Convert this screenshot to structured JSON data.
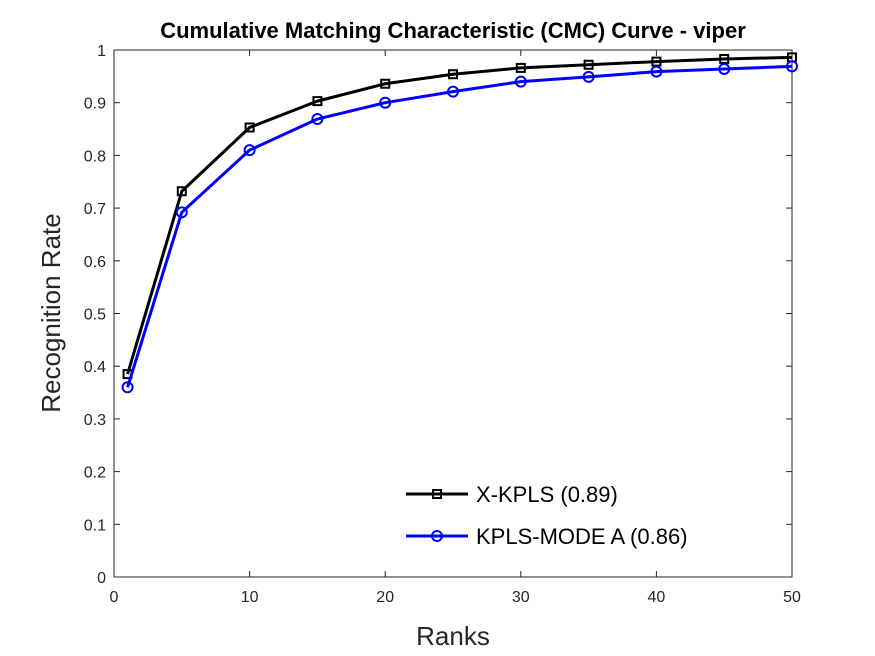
{
  "chart_data": {
    "type": "line",
    "title": "Cumulative Matching Characteristic (CMC) Curve - viper",
    "xlabel": "Ranks",
    "ylabel": "Recognition Rate",
    "xlim": [
      0,
      50
    ],
    "ylim": [
      0,
      1
    ],
    "xticks": [
      "0",
      "10",
      "20",
      "30",
      "40",
      "50"
    ],
    "yticks": [
      "0",
      "0.1",
      "0.2",
      "0.3",
      "0.4",
      "0.5",
      "0.6",
      "0.7",
      "0.8",
      "0.9",
      "1"
    ],
    "grid": false,
    "legend_position": "bottom-right",
    "x": [
      1,
      5,
      10,
      15,
      20,
      25,
      30,
      35,
      40,
      45,
      50
    ],
    "series": [
      {
        "name": "X-KPLS (0.89)",
        "color": "#000000",
        "marker": "square",
        "values": [
          0.385,
          0.732,
          0.853,
          0.903,
          0.936,
          0.954,
          0.966,
          0.972,
          0.978,
          0.983,
          0.986
        ]
      },
      {
        "name": "KPLS-MODE A (0.86)",
        "color": "#0000ff",
        "marker": "circle",
        "values": [
          0.36,
          0.692,
          0.81,
          0.869,
          0.9,
          0.921,
          0.94,
          0.949,
          0.959,
          0.964,
          0.969
        ]
      }
    ]
  }
}
